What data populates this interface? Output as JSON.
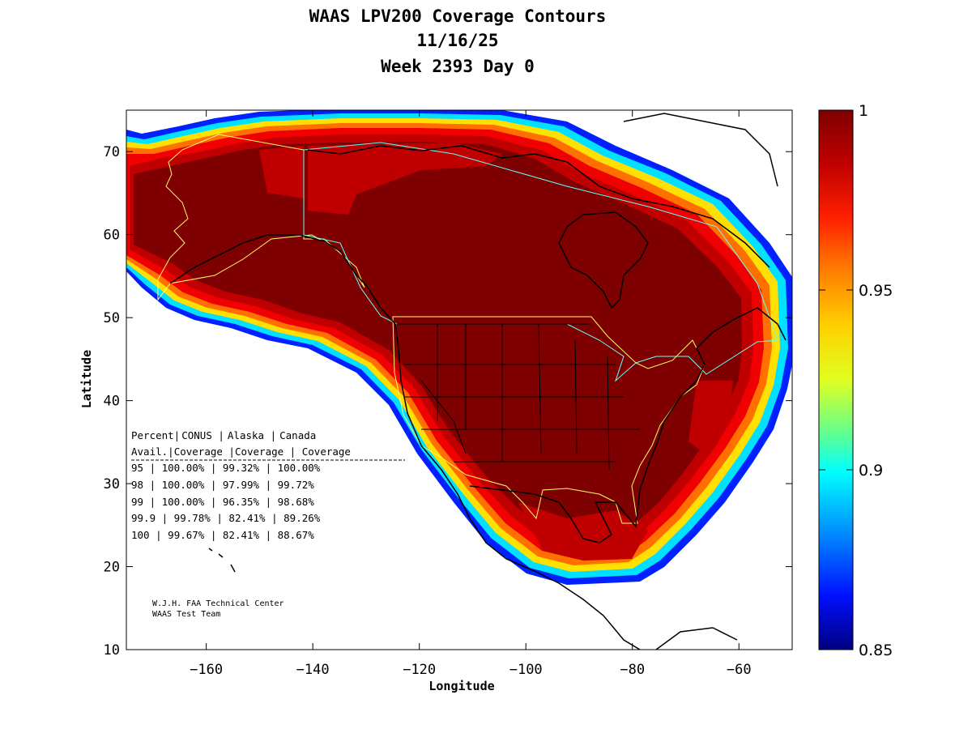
{
  "title": {
    "line1": "WAAS LPV200 Coverage Contours",
    "line2": "11/16/25",
    "line3": "Week 2393 Day 0"
  },
  "map": {
    "xlabel": "Longitude",
    "ylabel": "Latitude",
    "lon_range": [
      -175,
      -50
    ],
    "lat_range": [
      10,
      75
    ],
    "lon_ticks": [
      -160,
      -140,
      -120,
      -100,
      -80,
      -60
    ],
    "lat_ticks": [
      10,
      20,
      30,
      40,
      50,
      60,
      70
    ]
  },
  "colorbar": {
    "min": 0.85,
    "max": 1,
    "ticks": [
      "1",
      "0.95",
      "0.9",
      "0.85"
    ],
    "colors": [
      "#7f0000",
      "#ff0000",
      "#ff8000",
      "#ffff00",
      "#80ff80",
      "#00ffff",
      "#0080ff",
      "#0000ff",
      "#00008f"
    ]
  },
  "stats_table": {
    "header1": [
      "Percent|",
      "CONUS   |",
      "Alaska  |",
      "Canada"
    ],
    "header2": [
      " Avail.|",
      "Coverage |",
      "Coverage |",
      " Coverage"
    ],
    "rows": [
      [
        "  95   |",
        " 100.00%  |",
        " 99.32% |",
        " 100.00%"
      ],
      [
        "  98   |",
        " 100.00%  |",
        " 97.99% |",
        " 99.72%"
      ],
      [
        "  99   |",
        " 100.00%  |",
        " 96.35% |",
        " 98.68%"
      ],
      [
        "99.9   |",
        " 99.78%  |",
        " 82.41% |",
        " 89.26%"
      ],
      [
        " 100   |",
        " 99.67%  |",
        " 82.41% |",
        " 88.67%"
      ]
    ]
  },
  "credit": {
    "line1": "W.J.H. FAA Technical Center",
    "line2": "WAAS Test Team"
  }
}
